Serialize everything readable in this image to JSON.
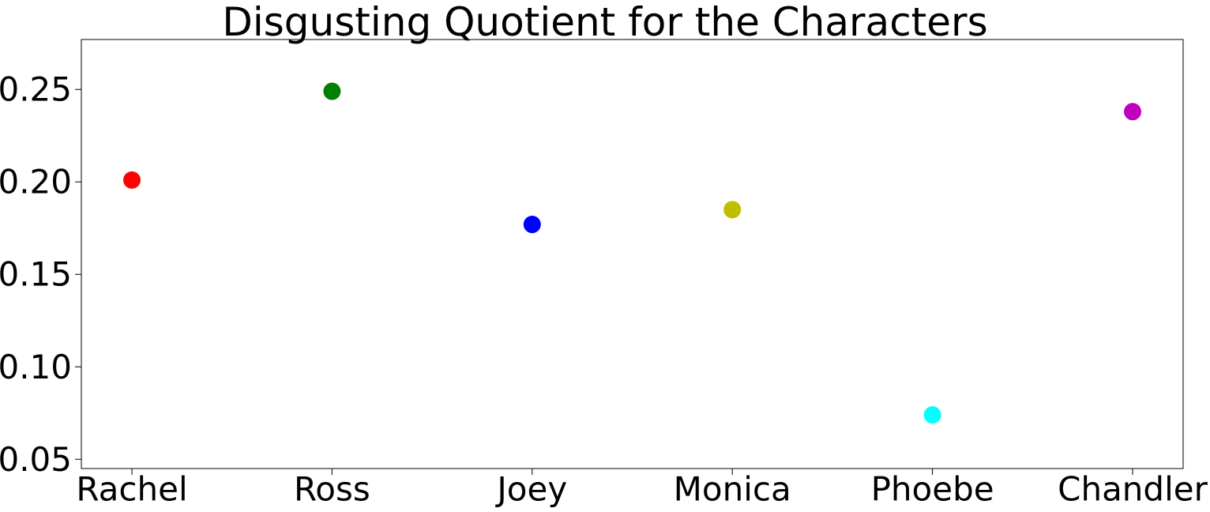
{
  "chart_data": {
    "type": "scatter",
    "title": "Disgusting Quotient for the Characters",
    "xlabel": "",
    "ylabel": "",
    "categories": [
      "Rachel",
      "Ross",
      "Joey",
      "Monica",
      "Phoebe",
      "Chandler"
    ],
    "values": [
      0.201,
      0.249,
      0.177,
      0.185,
      0.074,
      0.238
    ],
    "point_colors": [
      "#ff0000",
      "#008000",
      "#0000ff",
      "#bfbf00",
      "#00ffff",
      "#bf00bf"
    ],
    "ylim": [
      0.045,
      0.277
    ],
    "yticks": [
      "0.05",
      "0.10",
      "0.15",
      "0.20",
      "0.25"
    ],
    "grid": false,
    "legend": "none"
  }
}
